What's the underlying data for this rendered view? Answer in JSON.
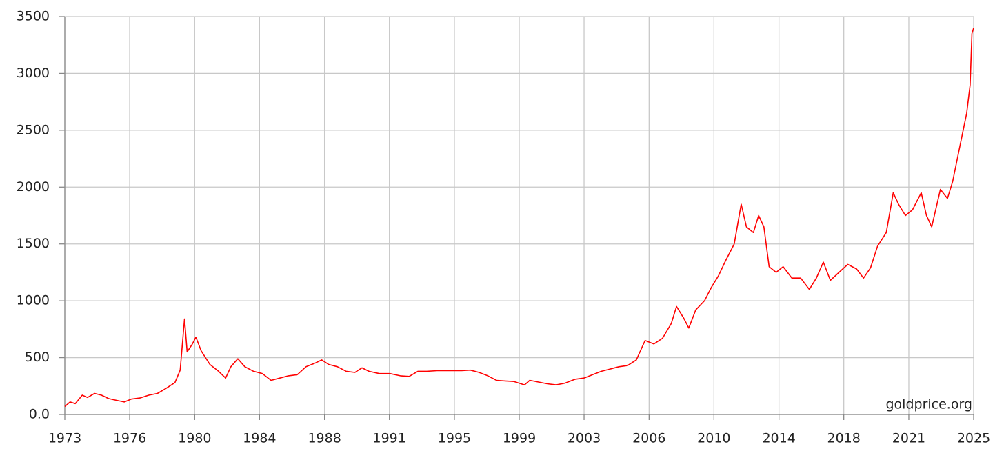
{
  "chart_data": {
    "type": "line",
    "watermark": "goldprice.org",
    "x": [
      1973.2,
      1973.5,
      1973.8,
      1974.2,
      1974.5,
      1974.9,
      1975.3,
      1975.7,
      1976.0,
      1976.6,
      1977.0,
      1977.5,
      1978.0,
      1978.5,
      1979.0,
      1979.5,
      1979.8,
      1980.05,
      1980.2,
      1980.5,
      1980.7,
      1981.0,
      1981.5,
      1982.0,
      1982.4,
      1982.7,
      1983.1,
      1983.5,
      1984.0,
      1984.5,
      1985.0,
      1985.5,
      1986.0,
      1986.5,
      1987.0,
      1987.5,
      1987.9,
      1988.3,
      1988.8,
      1989.3,
      1989.8,
      1990.2,
      1990.6,
      1991.2,
      1991.8,
      1992.4,
      1992.9,
      1993.4,
      1993.9,
      1994.5,
      1995.3,
      1995.9,
      1996.4,
      1996.9,
      1997.4,
      1997.9,
      1998.4,
      1998.9,
      1999.5,
      1999.8,
      2000.3,
      2000.8,
      2001.3,
      2001.8,
      2002.4,
      2002.9,
      2003.4,
      2003.9,
      2004.4,
      2004.9,
      2005.4,
      2005.9,
      2006.4,
      2006.9,
      2007.4,
      2007.9,
      2008.2,
      2008.6,
      2008.9,
      2009.3,
      2009.8,
      2010.2,
      2010.6,
      2011.0,
      2011.5,
      2011.9,
      2012.2,
      2012.6,
      2012.9,
      2013.2,
      2013.5,
      2013.9,
      2014.3,
      2014.8,
      2015.3,
      2015.8,
      2016.2,
      2016.6,
      2017.0,
      2017.5,
      2018.0,
      2018.5,
      2018.9,
      2019.3,
      2019.7,
      2020.2,
      2020.6,
      2020.9,
      2021.3,
      2021.7,
      2022.2,
      2022.5,
      2022.8,
      2023.3,
      2023.7,
      2024.0,
      2024.4,
      2024.8,
      2025.0,
      2025.1,
      2025.2
    ],
    "values": [
      70,
      110,
      95,
      170,
      150,
      185,
      170,
      140,
      130,
      110,
      135,
      145,
      170,
      185,
      230,
      280,
      390,
      840,
      550,
      620,
      680,
      560,
      440,
      380,
      320,
      420,
      490,
      420,
      380,
      360,
      300,
      320,
      340,
      350,
      420,
      450,
      480,
      440,
      420,
      380,
      370,
      410,
      380,
      360,
      360,
      340,
      335,
      380,
      380,
      385,
      385,
      385,
      390,
      370,
      340,
      300,
      295,
      290,
      260,
      300,
      285,
      270,
      260,
      275,
      310,
      320,
      350,
      380,
      400,
      420,
      430,
      480,
      650,
      620,
      670,
      800,
      950,
      850,
      760,
      920,
      1000,
      1120,
      1220,
      1350,
      1500,
      1850,
      1650,
      1600,
      1750,
      1650,
      1300,
      1250,
      1300,
      1200,
      1200,
      1100,
      1200,
      1340,
      1180,
      1250,
      1320,
      1280,
      1200,
      1290,
      1480,
      1600,
      1950,
      1850,
      1750,
      1800,
      1950,
      1750,
      1650,
      1980,
      1900,
      2050,
      2350,
      2650,
      2900,
      3350,
      3400
    ],
    "color": "#ff0000",
    "xlim": [
      1973.2,
      2025.2
    ],
    "xticks": [
      {
        "value": 1973.2,
        "label": "1973"
      },
      {
        "value": 1976.91,
        "label": "1976"
      },
      {
        "value": 1980.63,
        "label": "1980"
      },
      {
        "value": 1984.34,
        "label": "1984"
      },
      {
        "value": 1988.06,
        "label": "1988"
      },
      {
        "value": 1991.77,
        "label": "1991"
      },
      {
        "value": 1995.49,
        "label": "1995"
      },
      {
        "value": 1999.2,
        "label": "1999"
      },
      {
        "value": 2002.91,
        "label": "2003"
      },
      {
        "value": 2006.63,
        "label": "2006"
      },
      {
        "value": 2010.34,
        "label": "2010"
      },
      {
        "value": 2014.06,
        "label": "2014"
      },
      {
        "value": 2017.77,
        "label": "2018"
      },
      {
        "value": 2021.49,
        "label": "2021"
      },
      {
        "value": 2025.2,
        "label": "2025"
      }
    ],
    "ylim": [
      0,
      3500
    ],
    "yticks": [
      {
        "value": 0,
        "label": "0.0"
      },
      500,
      1000,
      1500,
      2000,
      2500,
      3000,
      3500
    ],
    "grid": true
  }
}
